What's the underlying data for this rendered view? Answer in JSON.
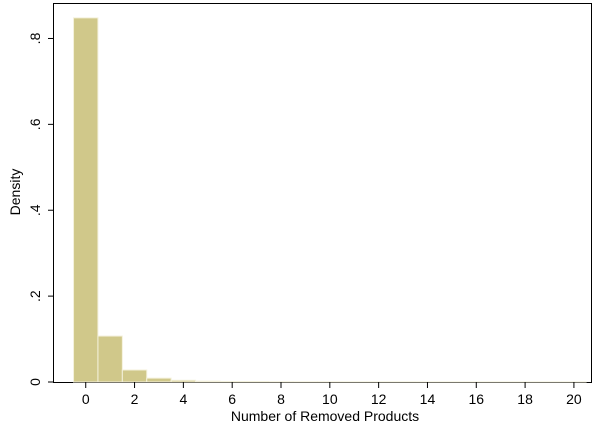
{
  "chart_data": {
    "type": "bar",
    "xlabel": "Number of Removed Products",
    "ylabel": "Density",
    "xlim": [
      -1.3,
      20.7
    ],
    "ylim": [
      0,
      0.85
    ],
    "x_ticks": [
      0,
      2,
      4,
      6,
      8,
      10,
      12,
      14,
      16,
      18,
      20
    ],
    "x_tick_labels": [
      "0",
      "2",
      "4",
      "6",
      "8",
      "10",
      "12",
      "14",
      "16",
      "18",
      "20"
    ],
    "y_ticks": [
      0,
      0.2,
      0.4,
      0.6,
      0.8
    ],
    "y_tick_labels": [
      "0",
      ".2",
      ".4",
      ".6",
      ".8"
    ],
    "bin_width": 1,
    "x": [
      0,
      1,
      2,
      3,
      4,
      5,
      6,
      7,
      8,
      9,
      10,
      11,
      12,
      13,
      14,
      15,
      16,
      17,
      18,
      19,
      20
    ],
    "values": [
      0.848,
      0.107,
      0.028,
      0.009,
      0.004,
      0.002,
      0.001,
      0.001,
      0.0005,
      0.0004,
      0.0003,
      0.0002,
      0.0002,
      0.0002,
      0.0001,
      0.0001,
      0.0001,
      0.0001,
      0.0001,
      0.0001,
      0.0001
    ],
    "grid": false,
    "legend": "none",
    "bar_fill": "#d0c88a",
    "bar_stroke": "#f4f1dc"
  }
}
